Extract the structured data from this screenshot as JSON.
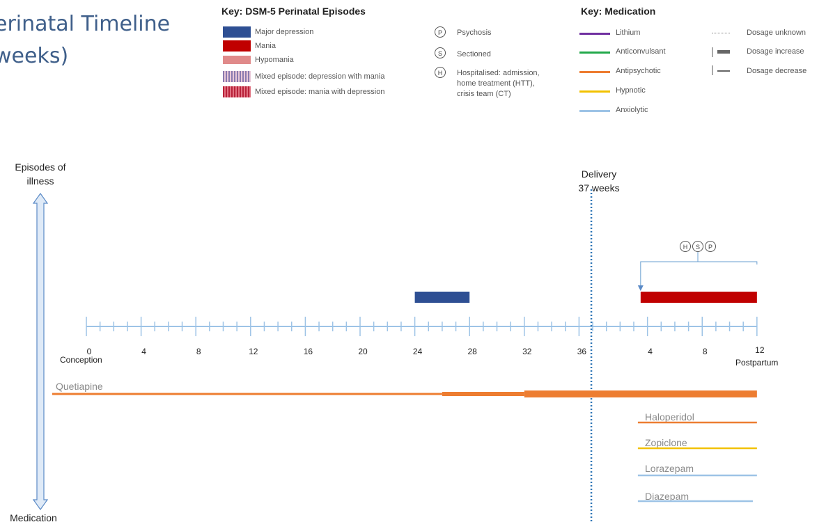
{
  "title": "erinatal Timeline\nweeks)",
  "key_episodes": {
    "heading": "Key: DSM-5 Perinatal Episodes",
    "items": [
      {
        "label": "Major depression",
        "color": "#2e4f93",
        "pattern": "solid"
      },
      {
        "label": "Mania",
        "color": "#c00000",
        "pattern": "solid"
      },
      {
        "label": "Hypomania",
        "color": "#e08a8a",
        "pattern": "solid"
      },
      {
        "label": "Mixed episode: depression with mania",
        "color": "#8a7bb0",
        "pattern": "stripes-light"
      },
      {
        "label": "Mixed episode: mania with depression",
        "color": "#b8223a",
        "pattern": "stripes-dark"
      }
    ]
  },
  "key_events": {
    "items": [
      {
        "symbol": "P",
        "label": "Psychosis"
      },
      {
        "symbol": "S",
        "label": "Sectioned"
      },
      {
        "symbol": "H",
        "label": "Hospitalised: admission,\nhome treatment (HTT),\ncrisis team (CT)"
      }
    ]
  },
  "key_medication": {
    "heading": "Key: Medication",
    "items": [
      {
        "label": "Lithium",
        "color": "#7030a0"
      },
      {
        "label": "Anticonvulsant",
        "color": "#22a84a"
      },
      {
        "label": "Antipsychotic",
        "color": "#ed7d31"
      },
      {
        "label": "Hypnotic",
        "color": "#f2c100"
      },
      {
        "label": "Anxiolytic",
        "color": "#9dc3e6"
      }
    ],
    "dosage": [
      {
        "label": "Dosage unknown"
      },
      {
        "label": "Dosage increase"
      },
      {
        "label": "Dosage decrease"
      }
    ]
  },
  "side_labels": {
    "top": "Episodes of\nillness",
    "bottom": "Medication"
  },
  "delivery": {
    "label": "Delivery\n37 weeks",
    "week": 37
  },
  "axis": {
    "pregnancy_labels": [
      "0",
      "4",
      "8",
      "12",
      "16",
      "20",
      "24",
      "28",
      "32",
      "36"
    ],
    "postpartum_labels": [
      "4",
      "8",
      "12"
    ],
    "start_word": "Conception",
    "end_word": "Postpartum"
  },
  "episodes": [
    {
      "type": "Major depression",
      "start": 24,
      "end": 28,
      "color": "#2e4f93"
    },
    {
      "type": "Mania",
      "start": 40.5,
      "end": 49,
      "color": "#c00000"
    }
  ],
  "event_markers": {
    "symbols": [
      "H",
      "S",
      "P"
    ],
    "week": 40.5
  },
  "medications": [
    {
      "name": "Quetiapine",
      "class": "Antipsychotic",
      "color": "#ed7d31",
      "segments": [
        {
          "start": -2.5,
          "end": 26,
          "dose": "base"
        },
        {
          "start": 26,
          "end": 32,
          "dose": "increase"
        },
        {
          "start": 32,
          "end": 49,
          "dose": "increase-2"
        }
      ]
    },
    {
      "name": "Haloperidol",
      "class": "Antipsychotic",
      "color": "#ed7d31",
      "start": 40.3,
      "end": 49
    },
    {
      "name": "Zopiclone",
      "class": "Hypnotic",
      "color": "#f2c100",
      "start": 40.3,
      "end": 49
    },
    {
      "name": "Lorazepam",
      "class": "Anxiolytic",
      "color": "#9dc3e6",
      "start": 40.3,
      "end": 49
    },
    {
      "name": "Diazepam",
      "class": "Anxiolytic",
      "color": "#9dc3e6",
      "start": 40.3,
      "end": 48.7
    }
  ]
}
